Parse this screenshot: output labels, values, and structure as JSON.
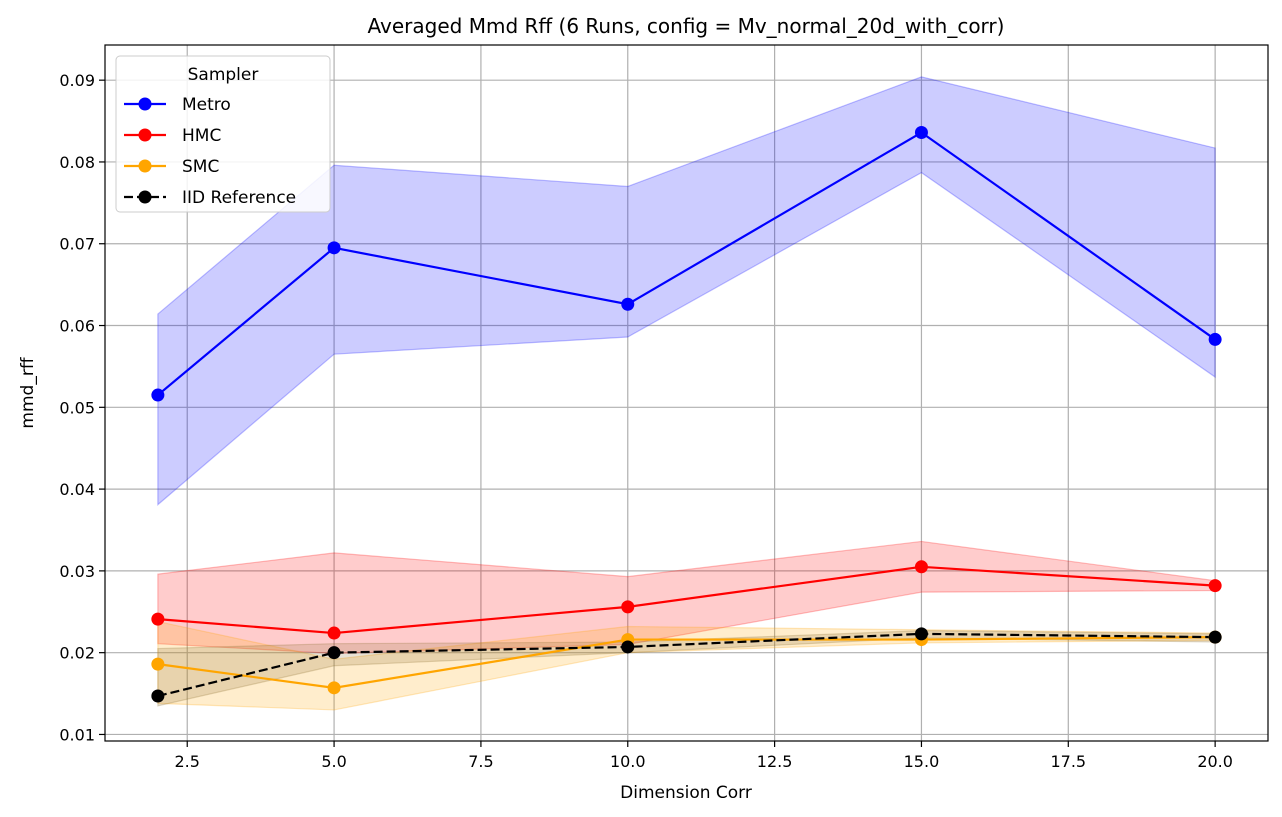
{
  "chart_data": {
    "type": "line",
    "title": "Averaged Mmd Rff (6 Runs, config = Mv_normal_20d_with_corr)",
    "xlabel": "Dimension Corr",
    "ylabel": "mmd_rff",
    "x": [
      2,
      5,
      10,
      15,
      20
    ],
    "xlim": [
      1.1,
      20.9
    ],
    "ylim": [
      0.0092,
      0.0943
    ],
    "xticks": [
      2.5,
      5.0,
      7.5,
      10.0,
      12.5,
      15.0,
      17.5,
      20.0
    ],
    "xtick_labels": [
      "2.5",
      "5.0",
      "7.5",
      "10.0",
      "12.5",
      "15.0",
      "17.5",
      "20.0"
    ],
    "yticks": [
      0.01,
      0.02,
      0.03,
      0.04,
      0.05,
      0.06,
      0.07,
      0.08,
      0.09
    ],
    "ytick_labels": [
      "0.01",
      "0.02",
      "0.03",
      "0.04",
      "0.05",
      "0.06",
      "0.07",
      "0.08",
      "0.09"
    ],
    "grid": true,
    "legend": {
      "title": "Sampler",
      "placement": "upper-left"
    },
    "series": [
      {
        "name": "Metro",
        "color": "#0000ff",
        "band_color": "#0000ff",
        "dashed": false,
        "values": [
          0.0515,
          0.0695,
          0.0626,
          0.0836,
          0.0583
        ],
        "lower": [
          0.0381,
          0.0565,
          0.0586,
          0.0787,
          0.0537
        ],
        "upper": [
          0.0614,
          0.0796,
          0.077,
          0.0904,
          0.0817
        ]
      },
      {
        "name": "HMC",
        "color": "#ff0000",
        "band_color": "#ff0000",
        "dashed": false,
        "values": [
          0.0241,
          0.0224,
          0.0256,
          0.0305,
          0.0282
        ],
        "lower": [
          0.0211,
          0.0199,
          0.021,
          0.0274,
          0.0276
        ],
        "upper": [
          0.0296,
          0.0322,
          0.0293,
          0.0336,
          0.0288
        ]
      },
      {
        "name": "SMC",
        "color": "#ffa500",
        "band_color": "#ffa500",
        "dashed": false,
        "values": [
          0.0186,
          0.0157,
          0.0216,
          0.0216,
          0.0219
        ],
        "lower": [
          0.0138,
          0.013,
          0.02,
          0.0212,
          0.0215
        ],
        "upper": [
          0.0238,
          0.0192,
          0.0232,
          0.0228,
          0.0224
        ]
      },
      {
        "name": "IID Reference",
        "color": "#000000",
        "band_color": "#8b6f30",
        "dashed": true,
        "values": [
          0.0147,
          0.02,
          0.0207,
          0.0223,
          0.0219
        ],
        "lower": [
          0.0135,
          0.0184,
          0.02,
          0.0218,
          0.0213
        ],
        "upper": [
          0.0205,
          0.0211,
          0.0213,
          0.0227,
          0.0223
        ]
      }
    ]
  }
}
